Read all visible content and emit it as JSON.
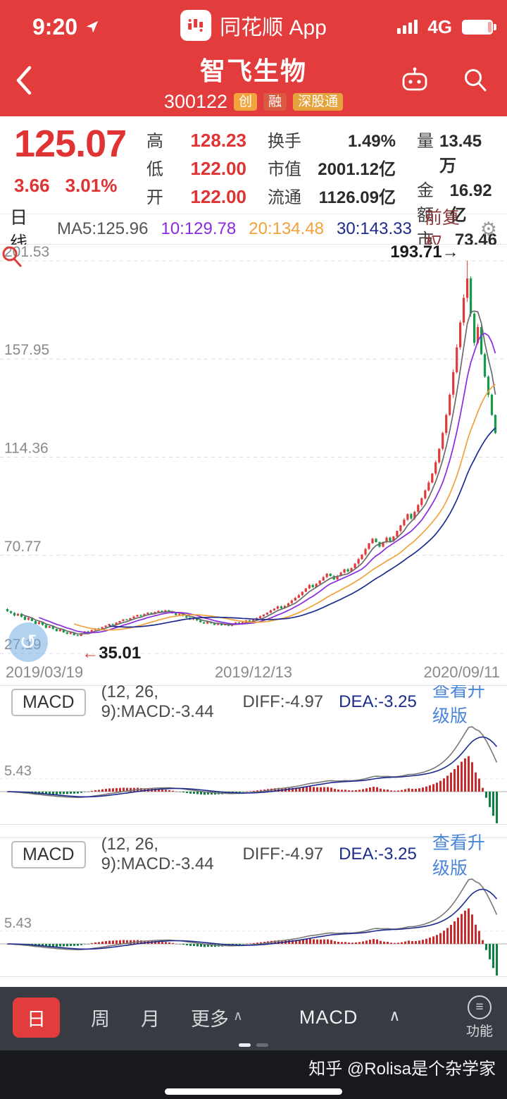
{
  "status_bar": {
    "time": "9:20",
    "app_name": "同花顺 App",
    "network": "4G"
  },
  "header": {
    "title": "智飞生物",
    "code": "300122",
    "badges": [
      "创",
      "融",
      "深股通"
    ]
  },
  "quote": {
    "price": "125.07",
    "change": "3.66",
    "change_pct": "3.01%",
    "stats_left": [
      {
        "label": "高",
        "value": "128.23"
      },
      {
        "label": "低",
        "value": "122.00"
      },
      {
        "label": "开",
        "value": "122.00"
      }
    ],
    "stats_mid": [
      {
        "label": "换手",
        "value": "1.49%"
      },
      {
        "label": "市值",
        "value": "2001.12亿"
      },
      {
        "label": "流通",
        "value": "1126.09亿"
      }
    ],
    "stats_right": [
      {
        "label": "量",
        "value": "13.45万"
      },
      {
        "label": "金额",
        "value": "16.92亿"
      },
      {
        "label": "市盈",
        "tm": "TM",
        "value": "73.46"
      }
    ]
  },
  "chart_toolbar": {
    "period": "日线",
    "ma5": "MA5:125.96",
    "ma10": "10:129.78",
    "ma20": "20:134.48",
    "ma30": "30:143.33",
    "adjust": "前复权"
  },
  "chart_data": [
    {
      "type": "candlestick",
      "title": "智飞生物 300122 日线",
      "ylim": [
        27.19,
        201.53
      ],
      "y_ticks": [
        "201.53",
        "157.95",
        "114.36",
        "70.77",
        "27.19"
      ],
      "x_labels": [
        "2019/03/19",
        "2019/12/13",
        "2020/09/11"
      ],
      "high_annotation": {
        "text": "193.71",
        "index": 131
      },
      "low_annotation": {
        "text": "35.01",
        "index": 20
      },
      "colors": {
        "up": "#e03a3a",
        "down": "#149a4a"
      },
      "ma_colors": {
        "ma5": "#6b6b6b",
        "ma10": "#8a2be2",
        "ma20": "#f2a13b",
        "ma30": "#1c2c8e"
      },
      "close": [
        46.0,
        45.2,
        44.0,
        44.8,
        43.5,
        42.2,
        42.9,
        41.6,
        40.3,
        41.1,
        39.9,
        38.6,
        39.3,
        38.1,
        37.1,
        37.9,
        36.6,
        35.9,
        36.5,
        35.3,
        35.01,
        36.2,
        37.0,
        36.4,
        37.6,
        38.3,
        37.9,
        38.9,
        39.6,
        40.3,
        39.9,
        40.9,
        41.6,
        42.3,
        41.9,
        42.9,
        43.6,
        44.3,
        43.9,
        44.7,
        45.3,
        44.9,
        45.6,
        46.1,
        45.5,
        46.3,
        45.9,
        45.1,
        44.3,
        44.9,
        43.9,
        43.1,
        42.3,
        42.9,
        41.9,
        41.1,
        40.5,
        41.3,
        40.7,
        39.9,
        40.5,
        39.7,
        40.3,
        39.5,
        40.1,
        40.9,
        40.3,
        41.1,
        41.9,
        41.3,
        42.1,
        42.9,
        43.7,
        44.5,
        45.3,
        46.3,
        47.1,
        48.1,
        47.3,
        48.3,
        49.5,
        50.7,
        51.9,
        53.1,
        54.6,
        56.1,
        57.6,
        56.6,
        58.1,
        59.6,
        61.1,
        62.6,
        61.6,
        60.1,
        61.6,
        63.1,
        64.6,
        63.6,
        65.1,
        67.1,
        69.1,
        71.1,
        73.6,
        76.1,
        78.1,
        76.6,
        74.6,
        76.6,
        78.6,
        77.1,
        79.1,
        81.6,
        84.1,
        86.6,
        89.1,
        87.1,
        90.1,
        93.1,
        96.1,
        99.6,
        103.1,
        107.1,
        112.1,
        118.1,
        125.1,
        133.1,
        142.1,
        152.1,
        163.1,
        174.1,
        185.1,
        193.71,
        178.1,
        165.1,
        172.1,
        160.1,
        150.1,
        142.1,
        133.1,
        125.07
      ]
    },
    {
      "type": "macd",
      "name": "MACD",
      "params_label": "(12, 26, 9):MACD:-3.44",
      "diff_label": "DIFF:-4.97",
      "dea_label": "DEA:-3.25",
      "upgrade_link": "查看升级版",
      "y_tick": "5.43",
      "colors": {
        "diff": "#777777",
        "dea": "#1c2c8e",
        "hist_up": "#c82b2b",
        "hist_down": "#0b8040"
      }
    }
  ],
  "bottom_toolbar": {
    "periods": [
      {
        "label": "日",
        "active": true
      },
      {
        "label": "周",
        "active": false
      },
      {
        "label": "月",
        "active": false
      }
    ],
    "more": "更多",
    "indicator": "MACD",
    "func": "功能"
  },
  "watermark": "知乎 @Rolisa是个杂学家",
  "colors": {
    "brand_red": "#e23c3c",
    "price_up": "#e03333",
    "link_blue": "#4a86d8"
  }
}
